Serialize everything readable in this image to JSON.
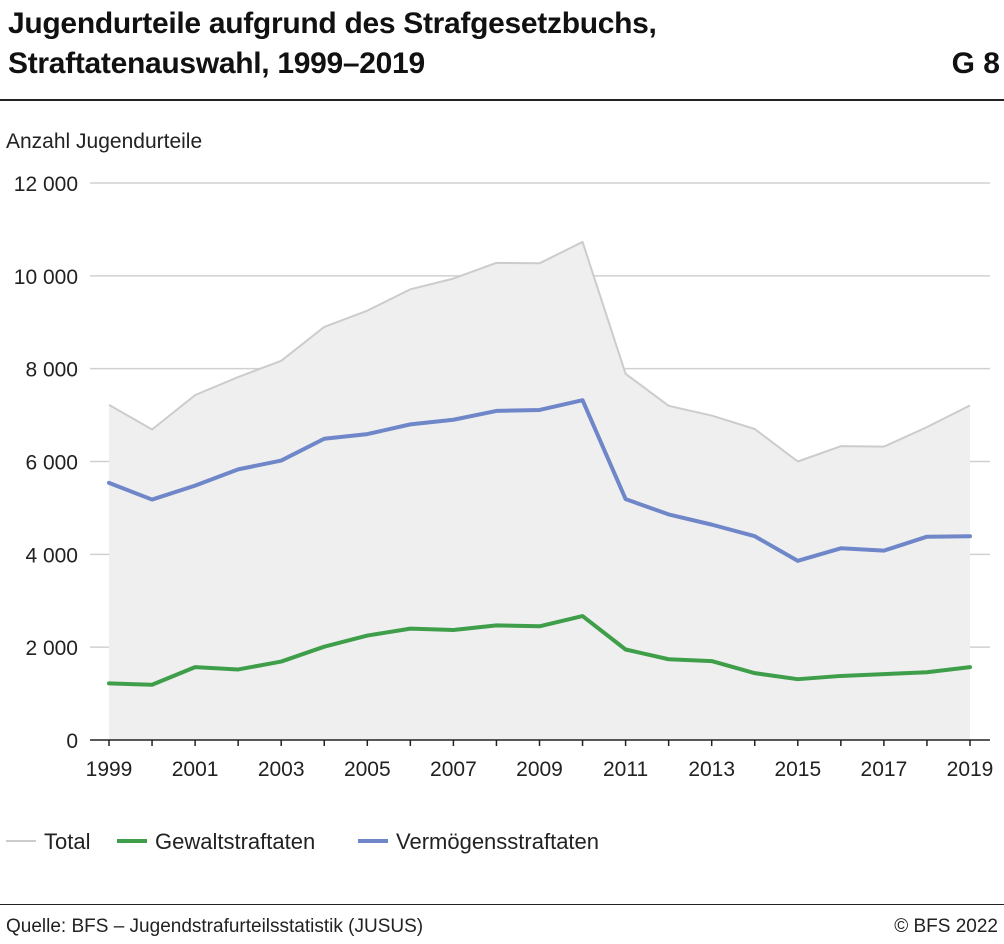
{
  "header": {
    "title_line1": "Jugendurteile aufgrund des Strafgesetzbuchs,",
    "title_line2": "Straftatenauswahl, 1999–2019",
    "graphic_number": "G 8"
  },
  "footer": {
    "source": "Quelle: BFS – Jugendstrafurteilsstatistik (JUSUS)",
    "copyright": "© BFS 2022"
  },
  "chart_data": {
    "type": "line",
    "title": "Jugendurteile aufgrund des Strafgesetzbuchs, Straftatenauswahl, 1999–2019",
    "ylabel": "Anzahl Jugendurteile",
    "xlabel": "",
    "x": [
      1999,
      2000,
      2001,
      2002,
      2003,
      2004,
      2005,
      2006,
      2007,
      2008,
      2009,
      2010,
      2011,
      2012,
      2013,
      2014,
      2015,
      2016,
      2017,
      2018,
      2019
    ],
    "xlim": [
      1999,
      2019
    ],
    "ylim": [
      0,
      12000
    ],
    "x_tick_labels": [
      "1999",
      "2001",
      "2003",
      "2005",
      "2007",
      "2009",
      "2011",
      "2013",
      "2015",
      "2017",
      "2019"
    ],
    "y_tick_labels": [
      "0",
      "2 000",
      "4 000",
      "6 000",
      "8 000",
      "10 000",
      "12 000"
    ],
    "y_ticks": [
      0,
      2000,
      4000,
      6000,
      8000,
      10000,
      12000
    ],
    "grid": true,
    "legend_position": "bottom-left",
    "series": [
      {
        "name": "Total",
        "style": "area",
        "color": "#cccccc",
        "fill": "#efefef",
        "values": [
          7220,
          6690,
          7430,
          7820,
          8170,
          8900,
          9250,
          9710,
          9940,
          10280,
          10270,
          10730,
          7890,
          7200,
          6990,
          6700,
          6000,
          6330,
          6320,
          6740,
          7210
        ]
      },
      {
        "name": "Gewaltstraftaten",
        "style": "line",
        "color": "#3f9e4a",
        "values": [
          1220,
          1190,
          1570,
          1520,
          1690,
          2010,
          2250,
          2400,
          2370,
          2470,
          2450,
          2670,
          1950,
          1740,
          1700,
          1440,
          1310,
          1380,
          1420,
          1460,
          1570
        ]
      },
      {
        "name": "Vermögensstraftaten",
        "style": "line",
        "color": "#6f87c9",
        "values": [
          5540,
          5180,
          5480,
          5830,
          6020,
          6490,
          6590,
          6800,
          6900,
          7090,
          7110,
          7320,
          5190,
          4860,
          4640,
          4390,
          3860,
          4130,
          4080,
          4380,
          4390
        ]
      }
    ]
  }
}
